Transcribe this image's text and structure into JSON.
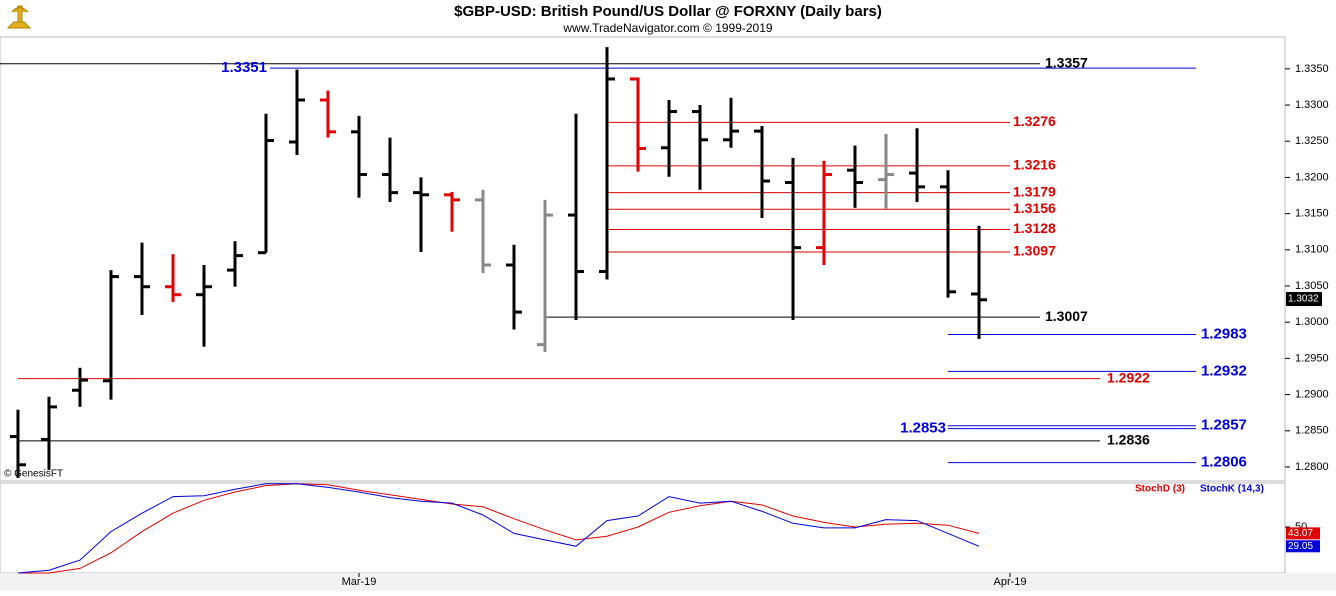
{
  "chart_data": [
    {
      "type": "ohlc",
      "title": "$GBP-USD:  British Pound/US Dollar @ FORXNY  (Daily bars)",
      "subtitle": "www.TradeNavigator.com © 1999-2019",
      "watermark": "© GenesisFT",
      "x": [
        0,
        1,
        2,
        3,
        4,
        5,
        6,
        7,
        8,
        9,
        10,
        11,
        12,
        13,
        14,
        15,
        16,
        17,
        18,
        19,
        20,
        21,
        22,
        23,
        24,
        25,
        26,
        27,
        28,
        29,
        30,
        31
      ],
      "open": [
        1.2842,
        1.2838,
        1.2906,
        1.2919,
        1.3063,
        1.3049,
        1.3038,
        1.3072,
        1.3096,
        1.3249,
        1.3307,
        1.3263,
        1.3204,
        1.3179,
        1.3176,
        1.3169,
        1.3079,
        1.2969,
        1.3148,
        1.307,
        1.3336,
        1.3241,
        1.3291,
        1.3252,
        1.3264,
        1.3193,
        1.3103,
        1.321,
        1.3197,
        1.3206,
        1.3187,
        1.3039
      ],
      "high": [
        1.2879,
        1.2897,
        1.2937,
        1.3072,
        1.311,
        1.3094,
        1.3079,
        1.3112,
        1.3288,
        1.3349,
        1.332,
        1.3285,
        1.3255,
        1.32,
        1.318,
        1.3183,
        1.3107,
        1.3169,
        1.3288,
        1.338,
        1.3338,
        1.3307,
        1.33,
        1.331,
        1.3271,
        1.3227,
        1.3223,
        1.3244,
        1.326,
        1.3268,
        1.321,
        1.3133
      ],
      "low": [
        1.2785,
        1.2796,
        1.2883,
        1.2893,
        1.301,
        1.3028,
        1.2966,
        1.3049,
        1.3096,
        1.3231,
        1.3255,
        1.3172,
        1.3166,
        1.3097,
        1.3125,
        1.3068,
        1.299,
        1.2959,
        1.3003,
        1.3059,
        1.3208,
        1.3201,
        1.3183,
        1.3241,
        1.3144,
        1.3003,
        1.3079,
        1.3158,
        1.3157,
        1.3166,
        1.3034,
        1.2977
      ],
      "close": [
        1.2803,
        1.2883,
        1.292,
        1.3063,
        1.3049,
        1.3038,
        1.3049,
        1.3092,
        1.3251,
        1.3307,
        1.3263,
        1.3204,
        1.3179,
        1.3176,
        1.3169,
        1.3079,
        1.3014,
        1.3148,
        1.307,
        1.3336,
        1.324,
        1.3291,
        1.3252,
        1.3264,
        1.3195,
        1.3103,
        1.3204,
        1.3193,
        1.3204,
        1.3187,
        1.3042,
        1.3031
      ],
      "colors": [
        "#000",
        "#000",
        "#000",
        "#000",
        "#000",
        "#e00000",
        "#000",
        "#000",
        "#000",
        "#000",
        "#e00000",
        "#000",
        "#000",
        "#000",
        "#e00000",
        "#888888",
        "#000",
        "#888888",
        "#000",
        "#000",
        "#e00000",
        "#000",
        "#000",
        "#000",
        "#000",
        "#000",
        "#e00000",
        "#000",
        "#888888",
        "#000",
        "#000",
        "#000"
      ],
      "xlim": [
        -0.58,
        40.87
      ],
      "ylim": [
        1.2782,
        1.3394
      ],
      "yticks": [
        {
          "value": 1.28,
          "label": "1.2800"
        },
        {
          "value": 1.285,
          "label": "1.2850"
        },
        {
          "value": 1.29,
          "label": "1.2900"
        },
        {
          "value": 1.295,
          "label": "1.2950"
        },
        {
          "value": 1.3,
          "label": "1.3000"
        },
        {
          "value": 1.305,
          "label": "1.3050"
        },
        {
          "value": 1.31,
          "label": "1.3100"
        },
        {
          "value": 1.315,
          "label": "1.3150"
        },
        {
          "value": 1.32,
          "label": "1.3200"
        },
        {
          "value": 1.325,
          "label": "1.3250"
        },
        {
          "value": 1.33,
          "label": "1.3300"
        },
        {
          "value": 1.335,
          "label": "1.3350"
        }
      ],
      "levels": [
        {
          "value": 1.3357,
          "color": "#000000"
        },
        {
          "value": 1.3351,
          "color": "#0000dd"
        },
        {
          "value": 1.3276,
          "color": "#e00000"
        },
        {
          "value": 1.3216,
          "color": "#e00000"
        },
        {
          "value": 1.3179,
          "color": "#e00000"
        },
        {
          "value": 1.3156,
          "color": "#e00000"
        },
        {
          "value": 1.3128,
          "color": "#e00000"
        },
        {
          "value": 1.3097,
          "color": "#e00000"
        },
        {
          "value": 1.3007,
          "color": "#000000"
        },
        {
          "value": 1.2983,
          "color": "#0000dd"
        },
        {
          "value": 1.2932,
          "color": "#0000dd"
        },
        {
          "value": 1.2922,
          "color": "#e00000"
        },
        {
          "value": 1.2857,
          "color": "#0000dd"
        },
        {
          "value": 1.2853,
          "color": "#0000dd"
        },
        {
          "value": 1.2836,
          "color": "#000000"
        },
        {
          "value": 1.2806,
          "color": "#0000dd"
        }
      ],
      "last_price": 1.3032
    },
    {
      "type": "line",
      "x": [
        0,
        1,
        2,
        3,
        4,
        5,
        6,
        7,
        8,
        9,
        10,
        11,
        12,
        13,
        14,
        15,
        16,
        17,
        18,
        19,
        20,
        21,
        22,
        23,
        24,
        25,
        26,
        27,
        28,
        29,
        30,
        31
      ],
      "series": [
        {
          "name": "StochD (3)",
          "color": "#e00000",
          "values": [
            0,
            0,
            5,
            22,
            45,
            65,
            79,
            88,
            95,
            97,
            96,
            90,
            85,
            80,
            75,
            72,
            59,
            47,
            36,
            40,
            50,
            66,
            73,
            78,
            74,
            62,
            55,
            50,
            53,
            54,
            52,
            43.07
          ]
        },
        {
          "name": "StochK (14,3)",
          "color": "#0000dd",
          "values": [
            0,
            3,
            14,
            45,
            65,
            83,
            84,
            91,
            97,
            97,
            93,
            88,
            82,
            78,
            76,
            63,
            43,
            36,
            29,
            57,
            62,
            83,
            76,
            78,
            67,
            54,
            49,
            49,
            58,
            57,
            43,
            29.05
          ]
        }
      ],
      "xlim": [
        -0.58,
        40.87
      ],
      "xticks": [
        {
          "value": 11,
          "label": "Mar-19"
        },
        {
          "value": 32,
          "label": "Apr-19"
        }
      ],
      "ylim": [
        0,
        100
      ],
      "yticks": [
        50
      ]
    }
  ]
}
